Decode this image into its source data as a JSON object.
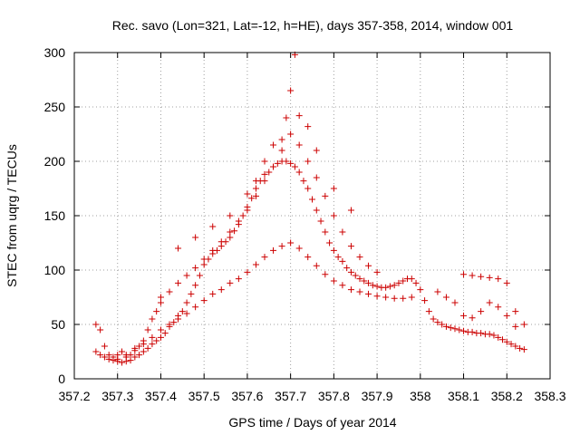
{
  "chart_data": {
    "type": "scatter",
    "title": "Rec. savo (Lon=321, Lat=-12, h=HE), days 357-358, 2014, window 001",
    "xlabel": "GPS time / Days of year 2014",
    "ylabel": "STEC from uqrg / TECUs",
    "xlim": [
      357.2,
      358.3
    ],
    "ylim": [
      0,
      300
    ],
    "xticks": [
      357.2,
      357.3,
      357.4,
      357.5,
      357.6,
      357.7,
      357.8,
      357.9,
      358,
      358.1,
      358.2,
      358.3
    ],
    "xtick_labels": [
      "357.2",
      "357.3",
      "357.4",
      "357.5",
      "357.6",
      "357.7",
      "357.8",
      "357.9",
      "358",
      "358.1",
      "358.2",
      "358.3"
    ],
    "yticks": [
      0,
      50,
      100,
      150,
      200,
      250,
      300
    ],
    "ytick_labels": [
      "0",
      "50",
      "100",
      "150",
      "200",
      "250",
      "300"
    ],
    "grid": true,
    "marker": "+",
    "marker_color": "#cc0000",
    "series": [
      {
        "name": "",
        "x": [
          357.25,
          357.25,
          357.26,
          357.26,
          357.27,
          357.27,
          357.28,
          357.28,
          357.29,
          357.29,
          357.3,
          357.3,
          357.31,
          357.31,
          357.32,
          357.32,
          357.33,
          357.33,
          357.34,
          357.34,
          357.35,
          357.35,
          357.36,
          357.36,
          357.37,
          357.37,
          357.38,
          357.38,
          357.39,
          357.39,
          357.4,
          357.4,
          357.41,
          357.42,
          357.43,
          357.44,
          357.45,
          357.46,
          357.47,
          357.48,
          357.49,
          357.5,
          357.51,
          357.52,
          357.53,
          357.54,
          357.55,
          357.56,
          357.57,
          357.58,
          357.59,
          357.6,
          357.61,
          357.62,
          357.63,
          357.64,
          357.65,
          357.66,
          357.67,
          357.68,
          357.69,
          357.7,
          357.71,
          357.72,
          357.73,
          357.74,
          357.75,
          357.76,
          357.77,
          357.78,
          357.79,
          357.8,
          357.81,
          357.82,
          357.83,
          357.84,
          357.85,
          357.86,
          357.87,
          357.88,
          357.89,
          357.9,
          357.91,
          357.92,
          357.93,
          357.94,
          357.95,
          357.96,
          357.97,
          357.98,
          357.99,
          358.0,
          358.01,
          358.02,
          358.03,
          358.04,
          358.05,
          358.06,
          358.07,
          358.08,
          358.09,
          358.1,
          358.11,
          358.12,
          358.13,
          358.14,
          358.15,
          358.16,
          358.17,
          358.18,
          358.19,
          358.2,
          358.21,
          358.22,
          358.23,
          358.24
        ],
        "y": [
          25,
          50,
          22,
          45,
          20,
          30,
          18,
          22,
          17,
          20,
          16,
          22,
          15,
          25,
          16,
          20,
          17,
          22,
          20,
          26,
          22,
          30,
          25,
          35,
          28,
          45,
          32,
          55,
          35,
          62,
          38,
          75,
          42,
          48,
          52,
          58,
          62,
          70,
          78,
          86,
          95,
          105,
          110,
          115,
          118,
          122,
          126,
          130,
          136,
          142,
          150,
          158,
          166,
          175,
          182,
          188,
          190,
          195,
          198,
          200,
          200,
          198,
          195,
          190,
          182,
          175,
          165,
          155,
          145,
          135,
          125,
          118,
          112,
          108,
          102,
          98,
          95,
          92,
          90,
          88,
          86,
          85,
          84,
          84,
          85,
          86,
          88,
          90,
          92,
          92,
          88,
          82,
          72,
          62,
          55,
          52,
          50,
          48,
          47,
          46,
          45,
          44,
          43,
          43,
          42,
          42,
          41,
          41,
          40,
          38,
          36,
          34,
          32,
          30,
          28,
          27
        ]
      },
      {
        "name": "",
        "x": [
          357.3,
          357.32,
          357.34,
          357.36,
          357.38,
          357.4,
          357.42,
          357.44,
          357.46,
          357.48,
          357.5,
          357.52,
          357.54,
          357.56,
          357.58,
          357.6,
          357.62,
          357.64,
          357.66,
          357.68,
          357.7,
          357.72,
          357.74,
          357.76,
          357.78,
          357.8,
          357.82,
          357.84,
          357.86,
          357.88,
          357.9,
          357.92,
          357.94,
          357.96,
          357.98
        ],
        "y": [
          18,
          22,
          28,
          32,
          38,
          45,
          50,
          55,
          60,
          66,
          72,
          78,
          82,
          88,
          92,
          98,
          105,
          112,
          118,
          122,
          125,
          120,
          112,
          104,
          96,
          90,
          86,
          82,
          80,
          78,
          76,
          75,
          74,
          74,
          75
        ]
      },
      {
        "name": "",
        "x": [
          357.4,
          357.42,
          357.44,
          357.46,
          357.48,
          357.5,
          357.52,
          357.54,
          357.56,
          357.58,
          357.6,
          357.62,
          357.64,
          357.66,
          357.68,
          357.7,
          357.72,
          357.74,
          357.76,
          357.78,
          357.8,
          357.82,
          357.84,
          357.86,
          357.88,
          357.9
        ],
        "y": [
          70,
          80,
          88,
          95,
          102,
          110,
          118,
          126,
          135,
          145,
          155,
          168,
          182,
          195,
          210,
          225,
          215,
          200,
          185,
          168,
          150,
          135,
          122,
          112,
          104,
          98
        ]
      },
      {
        "name": "",
        "x": [
          357.44,
          357.48,
          357.52,
          357.56,
          357.6,
          357.62,
          357.64,
          357.66,
          357.68,
          357.69,
          357.7,
          357.71,
          357.72,
          357.74,
          357.76,
          357.8,
          357.84
        ],
        "y": [
          120,
          130,
          140,
          150,
          170,
          182,
          200,
          215,
          220,
          240,
          265,
          298,
          242,
          232,
          210,
          175,
          155
        ]
      },
      {
        "name": "",
        "x": [
          358.04,
          358.06,
          358.08,
          358.1,
          358.12,
          358.14,
          358.16,
          358.18,
          358.2,
          358.22,
          358.24,
          358.1,
          358.12,
          358.14,
          358.16,
          358.18,
          358.2,
          358.22
        ],
        "y": [
          80,
          75,
          70,
          96,
          95,
          94,
          93,
          92,
          88,
          62,
          50,
          58,
          56,
          62,
          70,
          66,
          58,
          48
        ]
      }
    ]
  }
}
